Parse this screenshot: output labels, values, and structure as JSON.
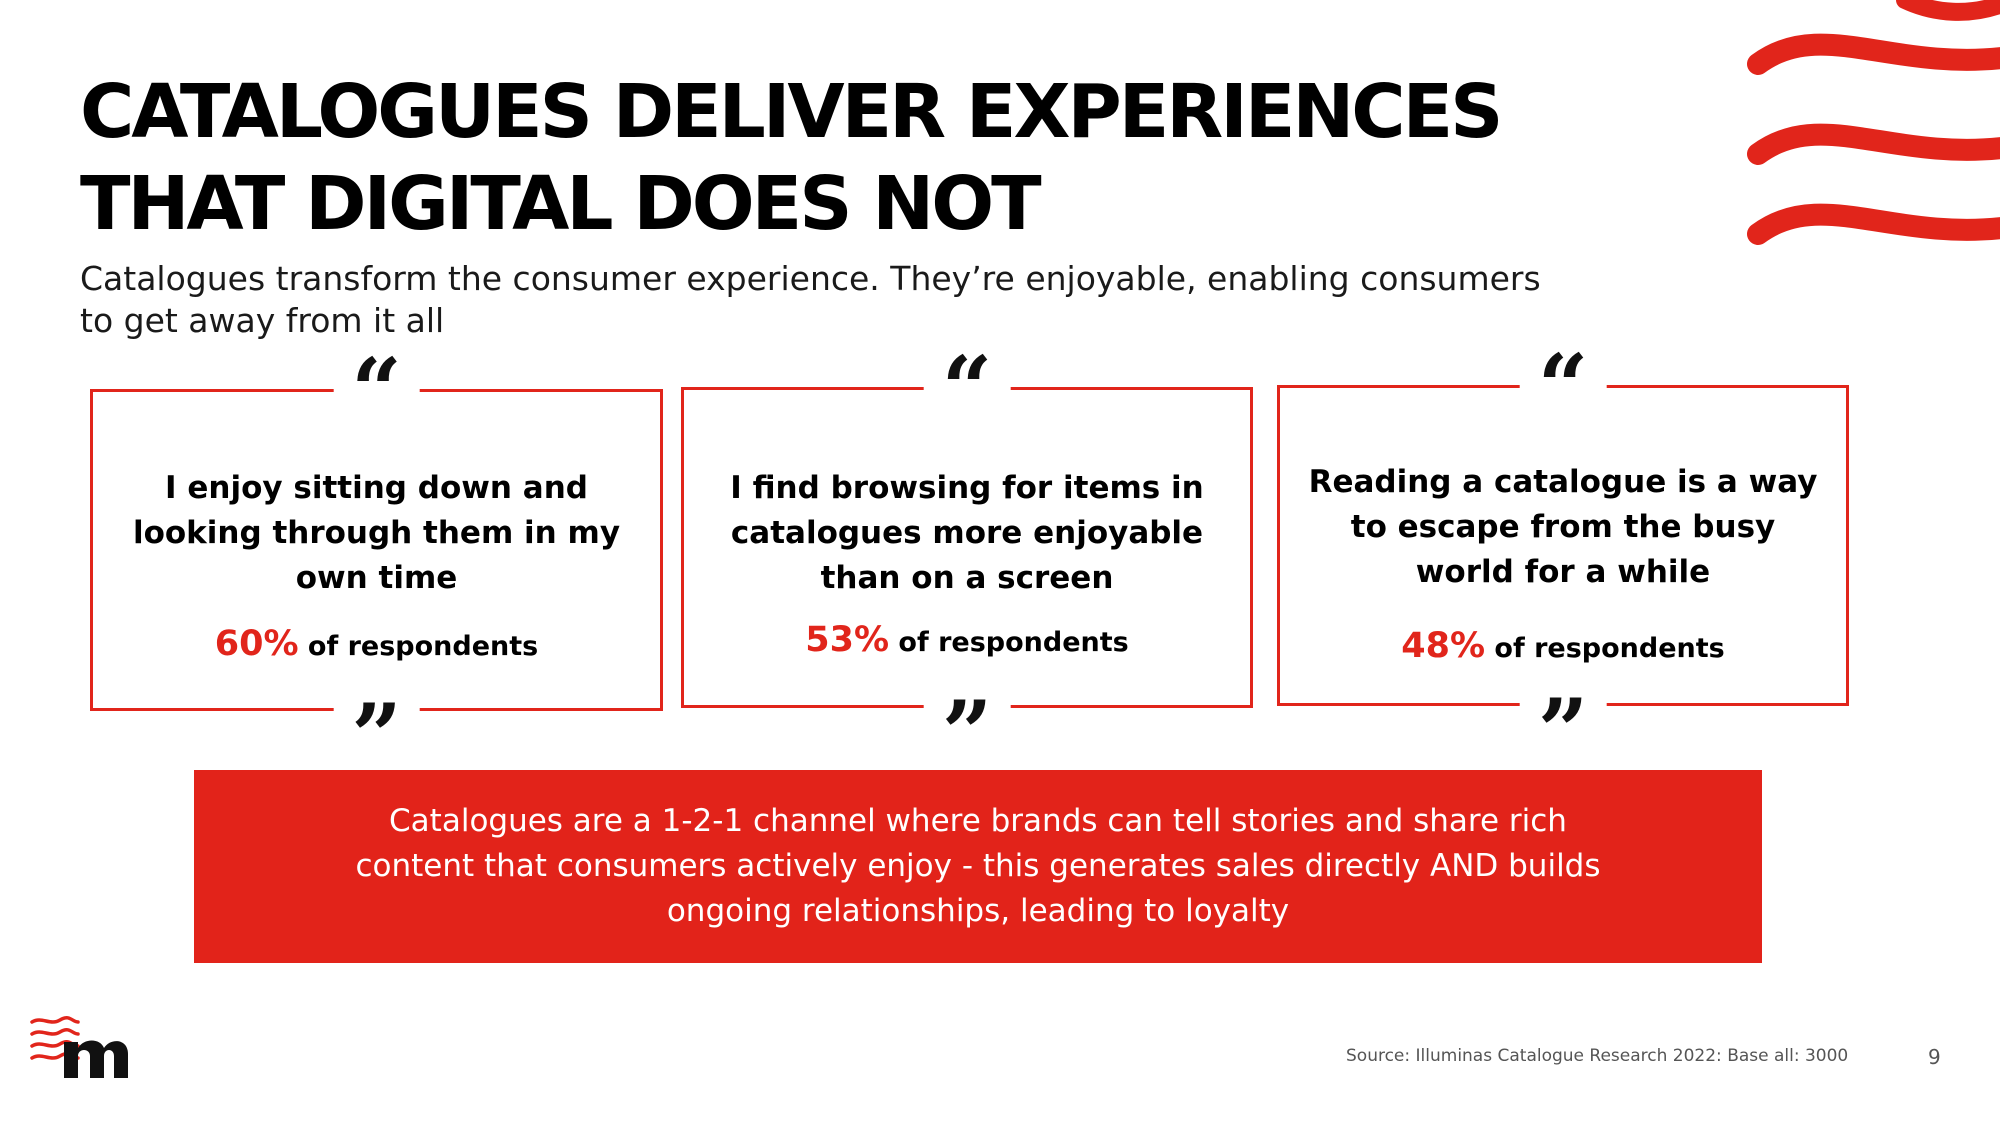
{
  "title_lines": [
    "CATALOGUES DELIVER EXPERIENCES",
    "THAT DIGITAL DOES NOT"
  ],
  "subtitle": "Catalogues transform the consumer experience. They’re enjoyable, enabling consumers to get away from it all",
  "quote_open_glyph": "“",
  "quote_close_glyph": "”",
  "cards": [
    {
      "statement": "I enjoy sitting down and looking through them in my own time",
      "percent": "60%",
      "suffix": " of respondents"
    },
    {
      "statement": "I find browsing for items in catalogues more enjoyable than on a screen",
      "percent": "53%",
      "suffix": " of respondents"
    },
    {
      "statement": "Reading a catalogue is a way to escape from the busy world for a while",
      "percent": "48%",
      "suffix": " of respondents"
    }
  ],
  "banner": "Catalogues are a 1-2-1 channel where brands can tell stories and share rich content that consumers actively enjoy -  this generates sales directly AND builds ongoing relationships, leading to loyalty",
  "source": "Source: Illuminas Catalogue Research 2022: Base all: 3000",
  "page_number": "9",
  "colors": {
    "accent": "#e1251b",
    "banner_bg": "#e2231a",
    "text": "#000000"
  },
  "icons": {
    "waves": "red-wave-lines-icon",
    "logo": "wave-m-logo"
  }
}
